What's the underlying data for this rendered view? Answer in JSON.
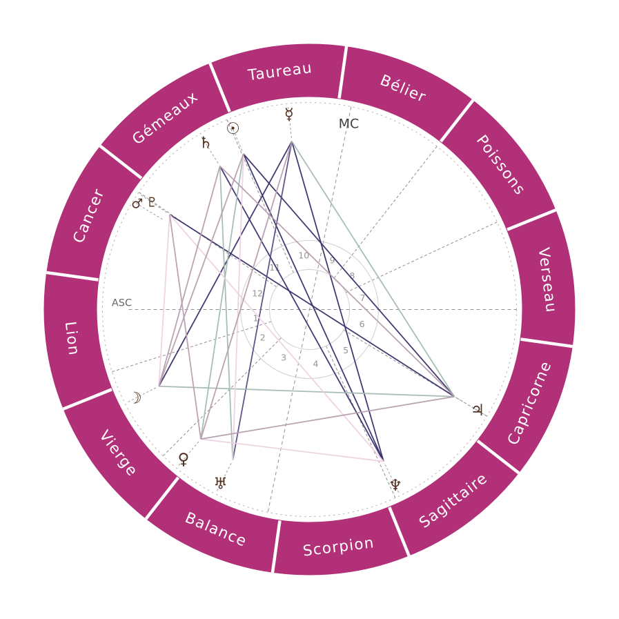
{
  "chart_data": {
    "type": "radial-natal-wheel",
    "colors": {
      "ring": "#b13078",
      "sign_label": "#ffffff",
      "planet_glyph": "#50301f",
      "dashed_line": "#8f8f8f",
      "house_circle": "#cfcfcf",
      "house_number": "#949494",
      "asc_label": "#666666",
      "mc_label": "#404040",
      "aspect_dark": "#38306a",
      "aspect_purple": "#5a4b82",
      "aspect_teal": "#a3bbb1",
      "aspect_pink": "#eed1e2",
      "aspect_mauve": "#b69eaf"
    },
    "signs": [
      {
        "label": "Verseau",
        "angle": 7
      },
      {
        "label": "Poissons",
        "angle": 37
      },
      {
        "label": "Bélier",
        "angle": 67
      },
      {
        "label": "Taureau",
        "angle": 97
      },
      {
        "label": "Gémeaux",
        "angle": 127
      },
      {
        "label": "Cancer",
        "angle": 157
      },
      {
        "label": "Lion",
        "angle": 187
      },
      {
        "label": "Vierge",
        "angle": 217
      },
      {
        "label": "Balance",
        "angle": 247
      },
      {
        "label": "Scorpion",
        "angle": 277
      },
      {
        "label": "Sagittaire",
        "angle": 307
      },
      {
        "label": "Capricorne",
        "angle": 337
      }
    ],
    "houses": {
      "cusps": [
        180,
        197.5,
        225,
        258.4,
        294.5,
        329,
        0,
        25,
        52,
        78.4,
        113.5,
        145.5
      ],
      "labels": [
        {
          "n": "1",
          "angle": 189
        },
        {
          "n": "2",
          "angle": 211
        },
        {
          "n": "3",
          "angle": 241.7
        },
        {
          "n": "4",
          "angle": 276.5
        },
        {
          "n": "5",
          "angle": 311.8
        },
        {
          "n": "6",
          "angle": 344.5
        },
        {
          "n": "7",
          "angle": 12.5
        },
        {
          "n": "8",
          "angle": 38.5
        },
        {
          "n": "9",
          "angle": 65.2
        },
        {
          "n": "10",
          "angle": 96
        },
        {
          "n": "11",
          "angle": 129.5
        },
        {
          "n": "12",
          "angle": 162.7
        }
      ]
    },
    "axes": {
      "asc_label": "ASC",
      "mc_label": "MC",
      "asc_angle": 180,
      "mc_angle": 78.4
    },
    "planets": [
      {
        "name": "sun",
        "glyph": "☉",
        "angle": 113
      },
      {
        "name": "moon",
        "glyph": "☽",
        "angle": 207
      },
      {
        "name": "mercury",
        "glyph": "☿",
        "angle": 96
      },
      {
        "name": "venus",
        "glyph": "♀",
        "angle": 230
      },
      {
        "name": "mars",
        "glyph": "♂",
        "angle": 148.5,
        "r": 293,
        "size": 19
      },
      {
        "name": "jupiter",
        "glyph": "♃",
        "angle": 329
      },
      {
        "name": "saturn",
        "glyph": "♄",
        "angle": 122
      },
      {
        "name": "uranus",
        "glyph": "♅",
        "angle": 243
      },
      {
        "name": "neptune",
        "glyph": "♆",
        "angle": 296
      },
      {
        "name": "pluto",
        "glyph": "♇",
        "angle": 145.8,
        "r": 276,
        "size": 19
      }
    ],
    "aspects": [
      {
        "a": "sun",
        "b": "neptune",
        "color": "#38306a"
      },
      {
        "a": "pluto",
        "b": "jupiter",
        "color": "#38306a"
      },
      {
        "a": "mercury",
        "b": "neptune",
        "color": "#38306a"
      },
      {
        "a": "saturn",
        "b": "neptune",
        "color": "#38306a"
      },
      {
        "a": "sun",
        "b": "jupiter",
        "color": "#38306a"
      },
      {
        "a": "moon",
        "b": "mercury",
        "color": "#38306a"
      },
      {
        "a": "mercury",
        "b": "uranus",
        "color": "#5a4b82"
      },
      {
        "a": "saturn",
        "b": "uranus",
        "color": "#a3bbb1"
      },
      {
        "a": "mercury",
        "b": "jupiter",
        "color": "#a3bbb1"
      },
      {
        "a": "moon",
        "b": "jupiter",
        "color": "#a3bbb1"
      },
      {
        "a": "sun",
        "b": "venus",
        "color": "#a3bbb1"
      },
      {
        "a": "moon",
        "b": "pluto",
        "color": "#eed1e2"
      },
      {
        "a": "venus",
        "b": "neptune",
        "color": "#eed1e2"
      },
      {
        "a": "pluto",
        "b": "neptune",
        "color": "#eed1e2"
      },
      {
        "a": "sun",
        "b": "uranus",
        "color": "#eed1e2"
      },
      {
        "a": "sun",
        "b": "moon",
        "color": "#b69eaf"
      },
      {
        "a": "saturn",
        "b": "moon",
        "color": "#b69eaf"
      },
      {
        "a": "venus",
        "b": "mercury",
        "color": "#b69eaf"
      },
      {
        "a": "venus",
        "b": "jupiter",
        "color": "#b69eaf"
      },
      {
        "a": "jupiter",
        "b": "saturn",
        "color": "#b69eaf"
      },
      {
        "a": "pluto",
        "b": "venus",
        "color": "#b69eaf"
      }
    ]
  }
}
